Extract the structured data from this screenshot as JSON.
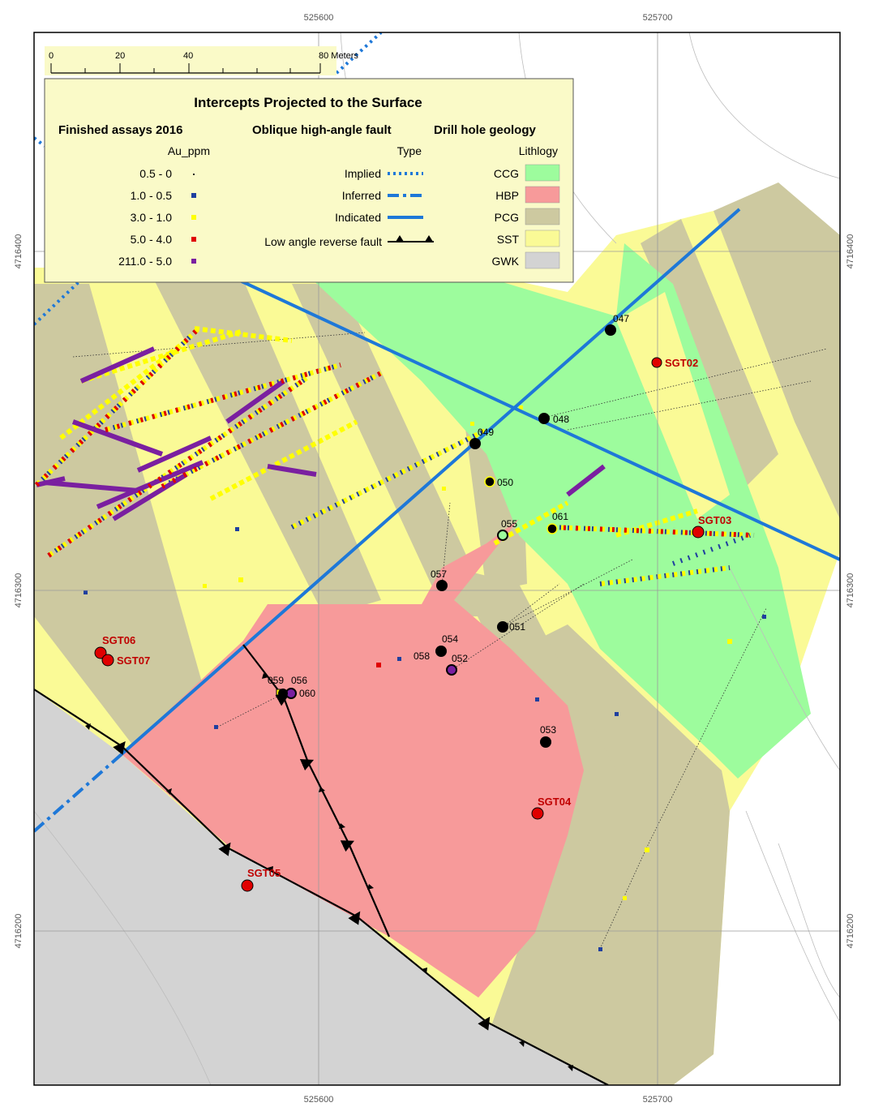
{
  "map": {
    "coords": {
      "top": [
        "525600",
        "525700"
      ],
      "bottom": [
        "525600",
        "525700"
      ],
      "left": [
        "4716400",
        "4716300",
        "4716200"
      ],
      "right": [
        "4716400",
        "4716300",
        "4716200"
      ]
    },
    "scale_bar": {
      "ticks": [
        "0",
        "20",
        "40",
        "80 Meters"
      ]
    },
    "legend": {
      "title": "Intercepts Projected to the Surface",
      "assays": {
        "heading": "Finished assays 2016",
        "field": "Au_ppm",
        "classes": [
          {
            "label": "0.5 - 0",
            "color": "#222222"
          },
          {
            "label": "1.0 - 0.5",
            "color": "#1f3f9f"
          },
          {
            "label": "3.0 - 1.0",
            "color": "#ffff00"
          },
          {
            "label": "5.0 - 4.0",
            "color": "#e00000"
          },
          {
            "label": "211.0 - 5.0",
            "color": "#7a1fa0"
          }
        ]
      },
      "faults": {
        "heading": "Oblique high-angle fault",
        "field": "Type",
        "types": [
          {
            "label": "Implied",
            "style": "dotted",
            "color": "#1e78d8"
          },
          {
            "label": "Inferred",
            "style": "dashed",
            "color": "#1e78d8"
          },
          {
            "label": "Indicated",
            "style": "solid",
            "color": "#1e78d8"
          }
        ],
        "reverse_fault_label": "Low angle reverse fault"
      },
      "geology": {
        "heading": "Drill hole geology",
        "field": "Lithlogy",
        "units": [
          {
            "label": "CCG",
            "color": "#9dfc9d"
          },
          {
            "label": "HBP",
            "color": "#f79a9a"
          },
          {
            "label": "PCG",
            "color": "#cdc9a0"
          },
          {
            "label": "SST",
            "color": "#fafa96"
          },
          {
            "label": "GWK",
            "color": "#d3d3d3"
          }
        ]
      }
    },
    "drill_holes": [
      {
        "label": "047"
      },
      {
        "label": "048"
      },
      {
        "label": "049"
      },
      {
        "label": "050"
      },
      {
        "label": "055"
      },
      {
        "label": "061"
      },
      {
        "label": "057"
      },
      {
        "label": "051"
      },
      {
        "label": "054"
      },
      {
        "label": "058"
      },
      {
        "label": "052"
      },
      {
        "label": "059"
      },
      {
        "label": "056"
      },
      {
        "label": "060"
      },
      {
        "label": "053"
      }
    ],
    "sgt_holes": [
      {
        "label": "SGT02"
      },
      {
        "label": "SGT03"
      },
      {
        "label": "SGT04"
      },
      {
        "label": "SGT05"
      },
      {
        "label": "SGT06"
      },
      {
        "label": "SGT07"
      }
    ]
  }
}
